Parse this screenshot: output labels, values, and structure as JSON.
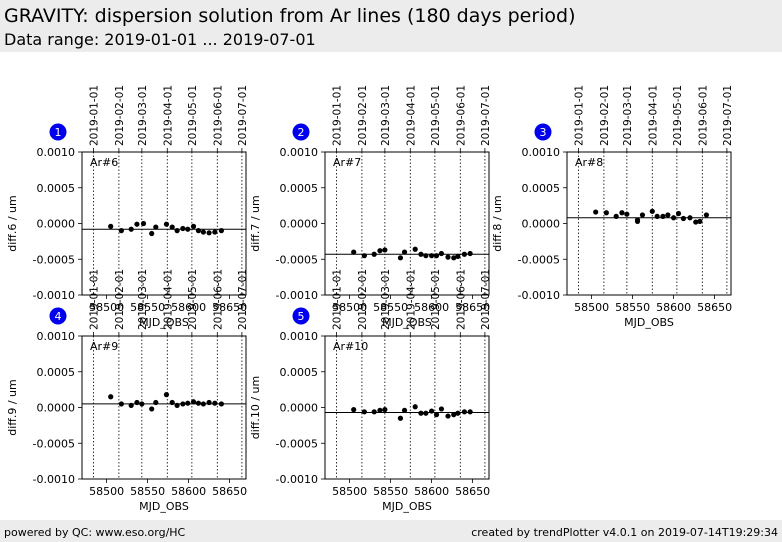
{
  "header": {
    "title": "GRAVITY: dispersion solution from Ar lines (180 days period)",
    "subtitle": "Data range: 2019-01-01 ... 2019-07-01"
  },
  "footer": {
    "left": "powered by QC: www.eso.org/HC",
    "right": "created by trendPlotter v4.0.1 on 2019-07-14T19:29:34"
  },
  "colors": {
    "badge": "#0000ee",
    "points": "#000000",
    "header_bg": "#ececec"
  },
  "chart_data": [
    {
      "type": "scatter",
      "badge": "1",
      "label": "Ar#6",
      "xlabel": "MJD_OBS",
      "ylabel": "diff.6 / um",
      "xlim": [
        58470,
        58670
      ],
      "ylim": [
        -0.001,
        0.001
      ],
      "x_ticks": [
        58500,
        58550,
        58600,
        58650
      ],
      "y_ticks": [
        "0.0010",
        "0.0005",
        "0.0000",
        "-0.0005",
        "-0.0010"
      ],
      "date_ticks": [
        "2019-01-01",
        "2019-02-01",
        "2019-03-01",
        "2019-04-01",
        "2019-05-01",
        "2019-06-01",
        "2019-07-01"
      ],
      "date_mjd": [
        58484,
        58515,
        58543,
        58574,
        58604,
        58635,
        58665
      ],
      "reference": -8e-05,
      "points": [
        [
          58505,
          -4e-05
        ],
        [
          58518,
          -0.0001
        ],
        [
          58530,
          -8e-05
        ],
        [
          58537,
          -1e-05
        ],
        [
          58545,
          0.0
        ],
        [
          58555,
          -0.00014
        ],
        [
          58560,
          -5e-05
        ],
        [
          58573,
          -1e-05
        ],
        [
          58580,
          -5e-05
        ],
        [
          58586,
          -0.0001
        ],
        [
          58593,
          -7e-05
        ],
        [
          58599,
          -8e-05
        ],
        [
          58606,
          -4e-05
        ],
        [
          58612,
          -0.0001
        ],
        [
          58618,
          -0.00012
        ],
        [
          58625,
          -0.00013
        ],
        [
          58632,
          -0.00012
        ],
        [
          58640,
          -0.0001
        ]
      ]
    },
    {
      "type": "scatter",
      "badge": "2",
      "label": "Ar#7",
      "xlabel": "MJD_OBS",
      "ylabel": "diff.7 / um",
      "xlim": [
        58470,
        58670
      ],
      "ylim": [
        -0.001,
        0.001
      ],
      "x_ticks": [
        58500,
        58550,
        58600,
        58650
      ],
      "y_ticks": [
        "0.0010",
        "0.0005",
        "0.0000",
        "-0.0005",
        "-0.0010"
      ],
      "date_ticks": [
        "2019-01-01",
        "2019-02-01",
        "2019-03-01",
        "2019-04-01",
        "2019-05-01",
        "2019-06-01",
        "2019-07-01"
      ],
      "date_mjd": [
        58484,
        58515,
        58543,
        58574,
        58604,
        58635,
        58665
      ],
      "reference": -0.00043,
      "points": [
        [
          58505,
          -0.0004
        ],
        [
          58518,
          -0.00045
        ],
        [
          58530,
          -0.00043
        ],
        [
          58537,
          -0.00038
        ],
        [
          58543,
          -0.00037
        ],
        [
          58562,
          -0.00048
        ],
        [
          58567,
          -0.0004
        ],
        [
          58580,
          -0.00036
        ],
        [
          58587,
          -0.00043
        ],
        [
          58593,
          -0.00045
        ],
        [
          58600,
          -0.00045
        ],
        [
          58606,
          -0.00045
        ],
        [
          58612,
          -0.00042
        ],
        [
          58620,
          -0.00047
        ],
        [
          58627,
          -0.00048
        ],
        [
          58632,
          -0.00046
        ],
        [
          58640,
          -0.00043
        ],
        [
          58647,
          -0.00042
        ]
      ]
    },
    {
      "type": "scatter",
      "badge": "3",
      "label": "Ar#8",
      "xlabel": "MJD_OBS",
      "ylabel": "diff.8 / um",
      "xlim": [
        58470,
        58670
      ],
      "ylim": [
        -0.001,
        0.001
      ],
      "x_ticks": [
        58500,
        58550,
        58600,
        58650
      ],
      "y_ticks": [
        "0.0010",
        "0.0005",
        "0.0000",
        "-0.0005",
        "-0.0010"
      ],
      "date_ticks": [
        "2019-01-01",
        "2019-02-01",
        "2019-03-01",
        "2019-04-01",
        "2019-05-01",
        "2019-06-01",
        "2019-07-01"
      ],
      "date_mjd": [
        58484,
        58515,
        58543,
        58574,
        58604,
        58635,
        58665
      ],
      "reference": 8e-05,
      "points": [
        [
          58505,
          0.00016
        ],
        [
          58518,
          0.00015
        ],
        [
          58530,
          0.0001
        ],
        [
          58537,
          0.00015
        ],
        [
          58543,
          0.00013
        ],
        [
          58556,
          5e-05
        ],
        [
          58556,
          3e-05
        ],
        [
          58562,
          0.00012
        ],
        [
          58574,
          0.00017
        ],
        [
          58580,
          0.0001
        ],
        [
          58587,
          0.0001
        ],
        [
          58593,
          0.00012
        ],
        [
          58600,
          8e-05
        ],
        [
          58606,
          0.00014
        ],
        [
          58612,
          7e-05
        ],
        [
          58620,
          8e-05
        ],
        [
          58627,
          2e-05
        ],
        [
          58632,
          3e-05
        ],
        [
          58640,
          0.00012
        ]
      ]
    },
    {
      "type": "scatter",
      "badge": "4",
      "label": "Ar#9",
      "xlabel": "MJD_OBS",
      "ylabel": "diff.9 / um",
      "xlim": [
        58470,
        58670
      ],
      "ylim": [
        -0.001,
        0.001
      ],
      "x_ticks": [
        58500,
        58550,
        58600,
        58650
      ],
      "y_ticks": [
        "0.0010",
        "0.0005",
        "0.0000",
        "-0.0005",
        "-0.0010"
      ],
      "date_ticks": [
        "2019-01-01",
        "2019-02-01",
        "2019-03-01",
        "2019-04-01",
        "2019-05-01",
        "2019-06-01",
        "2019-07-01"
      ],
      "date_mjd": [
        58484,
        58515,
        58543,
        58574,
        58604,
        58635,
        58665
      ],
      "reference": 5e-05,
      "points": [
        [
          58505,
          0.00015
        ],
        [
          58518,
          5e-05
        ],
        [
          58530,
          3e-05
        ],
        [
          58537,
          7e-05
        ],
        [
          58543,
          5e-05
        ],
        [
          58555,
          -2e-05
        ],
        [
          58560,
          7e-05
        ],
        [
          58573,
          0.00018
        ],
        [
          58580,
          7e-05
        ],
        [
          58586,
          3e-05
        ],
        [
          58593,
          5e-05
        ],
        [
          58599,
          6e-05
        ],
        [
          58606,
          8e-05
        ],
        [
          58612,
          6e-05
        ],
        [
          58618,
          5e-05
        ],
        [
          58625,
          7e-05
        ],
        [
          58632,
          6e-05
        ],
        [
          58640,
          5e-05
        ]
      ]
    },
    {
      "type": "scatter",
      "badge": "5",
      "label": "Ar#10",
      "xlabel": "MJD_OBS",
      "ylabel": "diff.10 / um",
      "xlim": [
        58470,
        58670
      ],
      "ylim": [
        -0.001,
        0.001
      ],
      "x_ticks": [
        58500,
        58550,
        58600,
        58650
      ],
      "y_ticks": [
        "0.0010",
        "0.0005",
        "0.0000",
        "-0.0005",
        "-0.0010"
      ],
      "date_ticks": [
        "2019-01-01",
        "2019-02-01",
        "2019-03-01",
        "2019-04-01",
        "2019-05-01",
        "2019-06-01",
        "2019-07-01"
      ],
      "date_mjd": [
        58484,
        58515,
        58543,
        58574,
        58604,
        58635,
        58665
      ],
      "reference": -7e-05,
      "points": [
        [
          58505,
          -3e-05
        ],
        [
          58518,
          -6e-05
        ],
        [
          58530,
          -6e-05
        ],
        [
          58537,
          -4e-05
        ],
        [
          58543,
          -3e-05
        ],
        [
          58562,
          -0.00015
        ],
        [
          58567,
          -4e-05
        ],
        [
          58580,
          1e-05
        ],
        [
          58587,
          -8e-05
        ],
        [
          58593,
          -8e-05
        ],
        [
          58600,
          -5e-05
        ],
        [
          58606,
          -0.0001
        ],
        [
          58612,
          -2e-05
        ],
        [
          58620,
          -0.00012
        ],
        [
          58627,
          -0.0001
        ],
        [
          58632,
          -8e-05
        ],
        [
          58640,
          -6e-05
        ],
        [
          58647,
          -6e-05
        ]
      ]
    }
  ]
}
